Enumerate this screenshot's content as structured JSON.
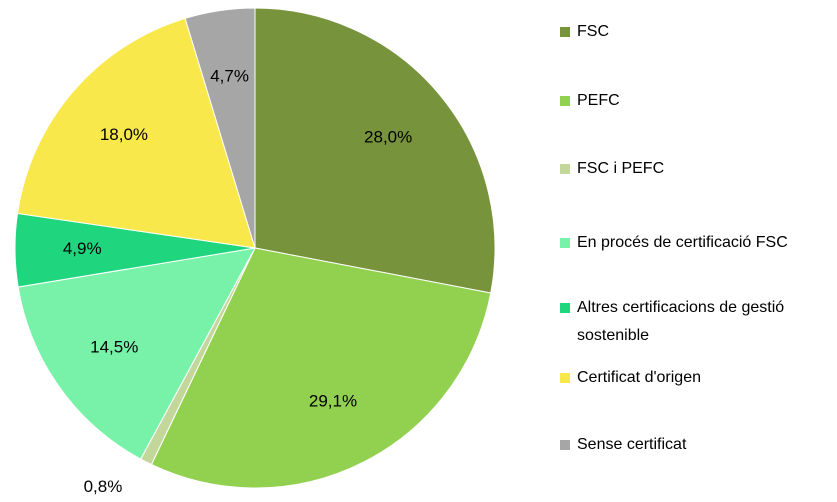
{
  "chart_data": {
    "type": "pie",
    "categories": [
      "FSC",
      "PEFC",
      "FSC i PEFC",
      "En procés de certificació FSC",
      "Altres certificacions de gestió sostenible",
      "Certificat d'origen",
      "Sense certificat"
    ],
    "values": [
      28.0,
      29.1,
      0.8,
      14.5,
      4.9,
      18.0,
      4.7
    ],
    "value_labels": [
      "28,0%",
      "29,1%",
      "0,8%",
      "14,5%",
      "4,9%",
      "18,0%",
      "4,7%"
    ],
    "colors": [
      "#77933c",
      "#92d050",
      "#c4d79b",
      "#78f2a9",
      "#1fd67f",
      "#f8e84c",
      "#a6a6a6"
    ],
    "legend": "right"
  }
}
